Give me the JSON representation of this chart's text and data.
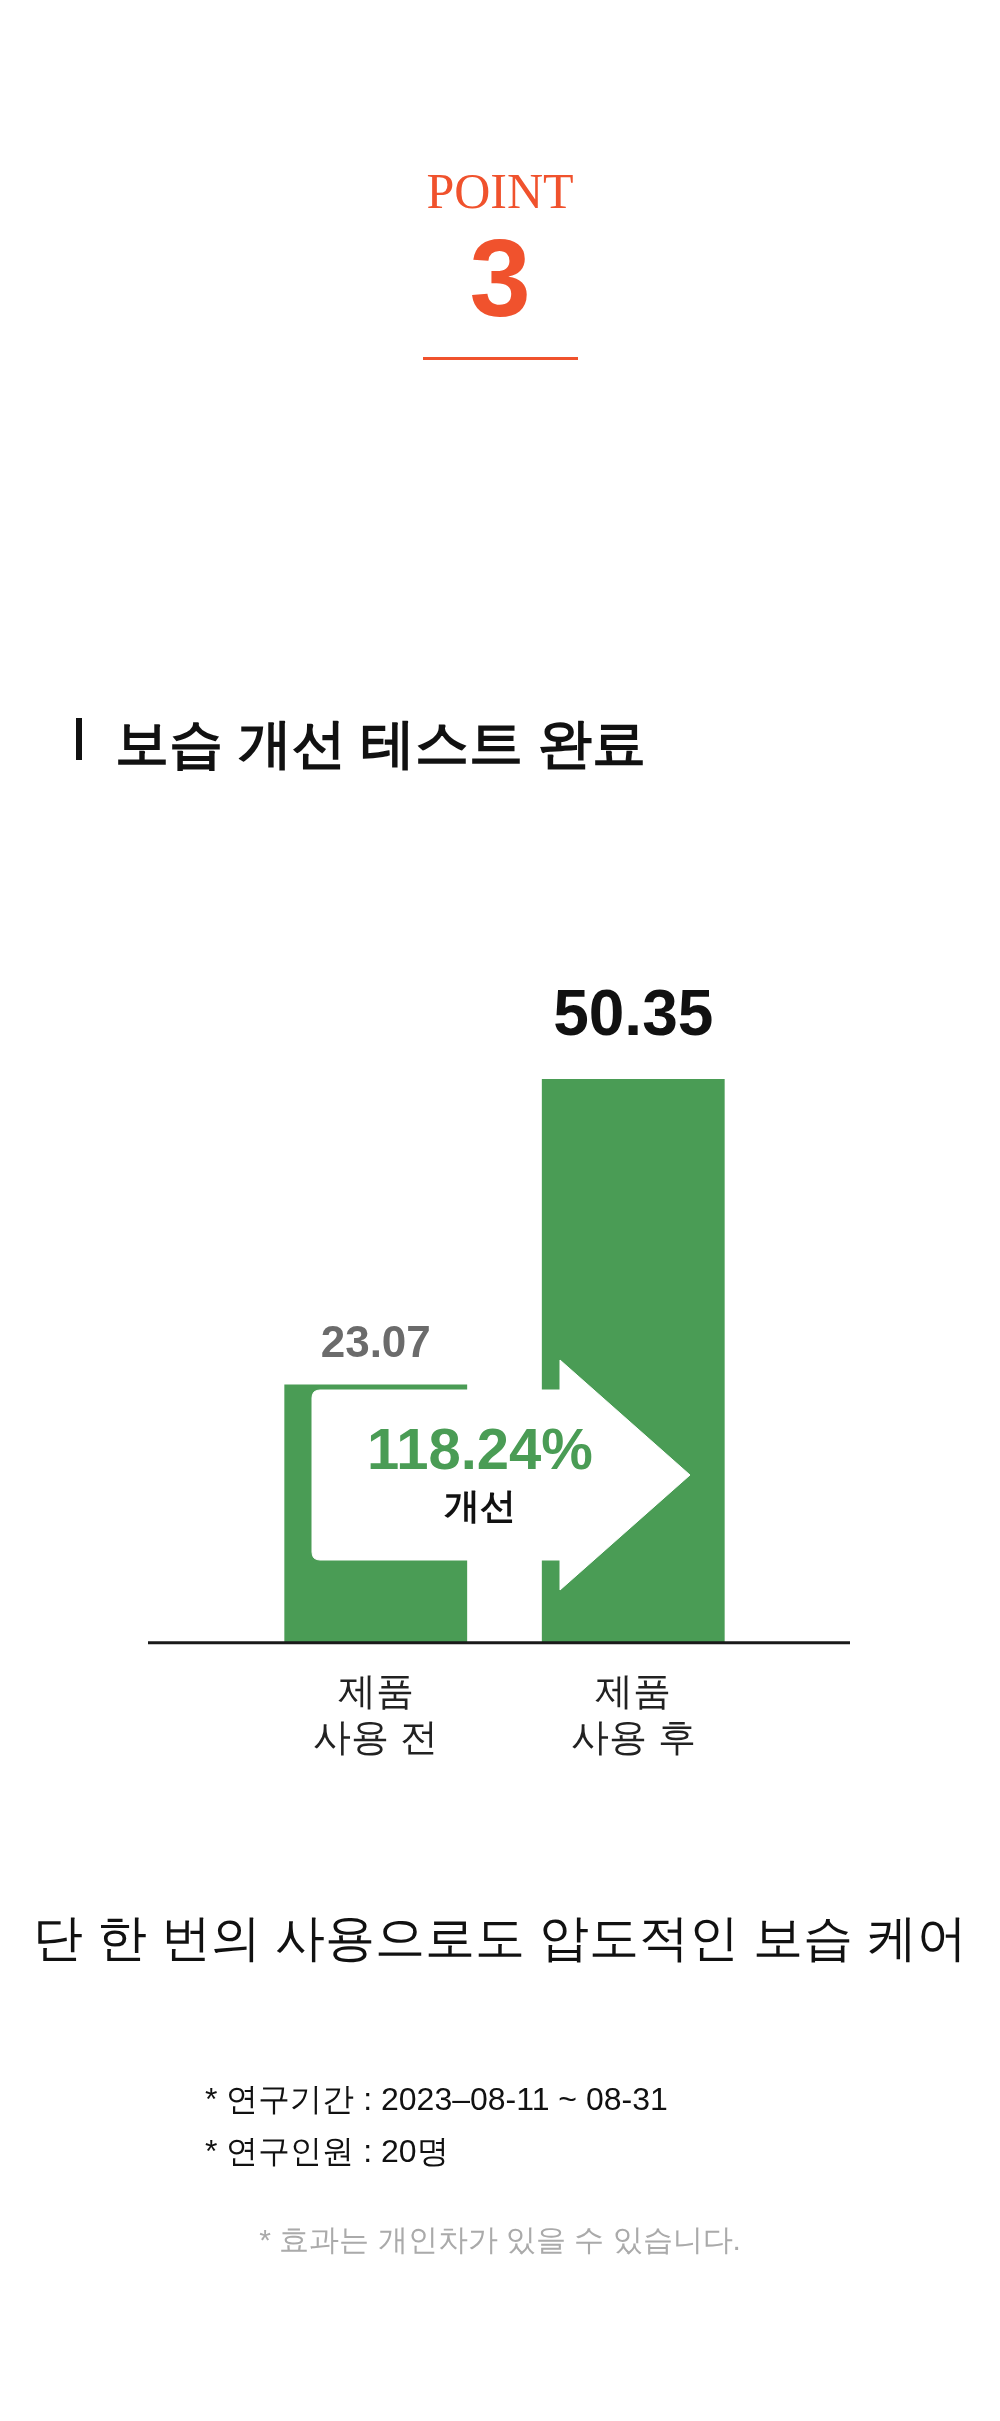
{
  "chart_data": {
    "type": "bar",
    "title": "보습 개선 테스트 완료",
    "subtitle": "단 한 번의 사용으로도 압도적인 보습 케어",
    "categories": [
      "제품 사용 전",
      "제품 사용 후"
    ],
    "values": [
      23.07,
      50.35
    ],
    "color": "#4a9c55",
    "data_labels": true,
    "grid": false,
    "legend": false,
    "annotations": [
      "POINT",
      "3",
      "118.24%",
      "개선",
      "* 연구기간 : 2023–08-11 ~ 08-31",
      "* 연구인원 : 20명",
      "* 효과는 개인차가 있을 수 있습니다."
    ]
  }
}
